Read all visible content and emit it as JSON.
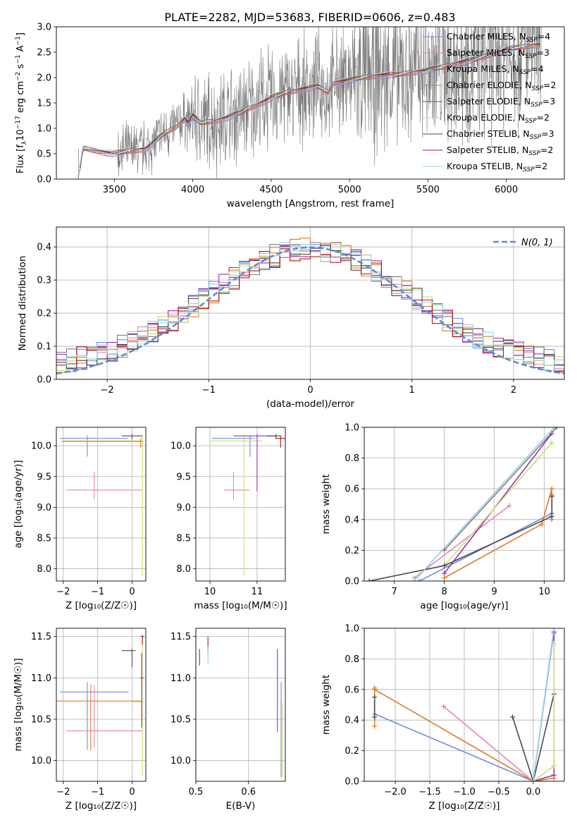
{
  "title": "PLATE=2282, MJD=53683, FIBERID=0606, z=0.483",
  "colors": {
    "chabrier_miles": "#6a8fdc",
    "salpeter_miles": "#e585b5",
    "kroupa_miles": "#7f7f7f",
    "chabrier_elodie": "#e07b27",
    "salpeter_elodie": "#9b2fb5",
    "kroupa_elodie": "#c7e26f",
    "chabrier_stelib": "#4a4a4a",
    "salpeter_stelib": "#b01515",
    "kroupa_stelib": "#8fd1e6",
    "data": "#777777",
    "gauss": "#5b8cd6",
    "grid": "#b0b0b0"
  },
  "chart_data": [
    {
      "type": "line",
      "panel": "spectrum",
      "xlabel": "wavelength [Angstrom, rest frame]",
      "ylabel": "Flux [f$_\\lambda$10$^{-17}$ erg cm$^{-2}$ s$^{-1}$ A$^{-1}$]",
      "ylabel_parts": [
        "Flux [f",
        "λ",
        "10",
        "−17",
        " erg cm",
        "−2",
        " s",
        "−1",
        " A",
        "−1",
        "]"
      ],
      "xlim": [
        3130,
        6370
      ],
      "ylim": [
        0,
        3.0
      ],
      "xticks": [
        3500,
        4000,
        4500,
        5000,
        5500,
        6000
      ],
      "yticks": [
        0.0,
        0.5,
        1.0,
        1.5,
        2.0,
        2.5,
        3.0
      ],
      "legend": [
        {
          "label": "Chabrier MILES, N",
          "sub": "SSP",
          "tail": "=4",
          "color": "#6a8fdc"
        },
        {
          "label": "Salpeter MILES, N",
          "sub": "SSP",
          "tail": "=3",
          "color": "#e585b5"
        },
        {
          "label": "Kroupa MILES, N",
          "sub": "SSP",
          "tail": "=4",
          "color": "#7f7f7f"
        },
        {
          "label": "Chabrier ELODIE, N",
          "sub": "SSP",
          "tail": "=2",
          "color": "#e07b27"
        },
        {
          "label": "Salpeter ELODIE, N",
          "sub": "SSP",
          "tail": "=3",
          "color": "#9b2fb5"
        },
        {
          "label": "Kroupa ELODIE, N",
          "sub": "SSP",
          "tail": "=2",
          "color": "#c7e26f"
        },
        {
          "label": "Chabrier STELIB, N",
          "sub": "SSP",
          "tail": "=3",
          "color": "#4a4a4a"
        },
        {
          "label": "Salpeter STELIB, N",
          "sub": "SSP",
          "tail": "=2",
          "color": "#b01515"
        },
        {
          "label": "Kroupa STELIB, N",
          "sub": "SSP",
          "tail": "=2",
          "color": "#8fd1e6"
        }
      ],
      "model_x": [
        3270,
        3300,
        3400,
        3500,
        3600,
        3700,
        3750,
        3800,
        3850,
        3900,
        3950,
        3970,
        4000,
        4050,
        4100,
        4150,
        4200,
        4300,
        4400,
        4500,
        4600,
        4700,
        4800,
        4860,
        4900,
        5000,
        5100,
        5200,
        5300,
        5400,
        5500,
        5600,
        5700,
        5800,
        5900,
        6000,
        6100,
        6200
      ],
      "model_y": [
        0.0,
        0.6,
        0.55,
        0.5,
        0.55,
        0.6,
        0.72,
        0.85,
        0.95,
        1.05,
        1.2,
        1.1,
        1.25,
        1.1,
        1.12,
        1.15,
        1.2,
        1.3,
        1.45,
        1.6,
        1.7,
        1.78,
        1.82,
        1.7,
        1.9,
        1.95,
        2.0,
        2.05,
        2.05,
        2.1,
        2.15,
        2.2,
        2.3,
        2.35,
        2.45,
        2.55,
        2.6,
        2.65
      ]
    },
    {
      "type": "line",
      "panel": "residual-histogram",
      "xlabel": "(data-model)/error",
      "ylabel": "Normed distribution",
      "xlim": [
        -2.5,
        2.5
      ],
      "ylim": [
        0,
        0.46
      ],
      "xticks": [
        -2,
        -1,
        0,
        1,
        2
      ],
      "yticks": [
        0.0,
        0.1,
        0.2,
        0.3,
        0.4
      ],
      "legend": [
        {
          "label": "N(0, 1)",
          "style": "dashed",
          "color": "#5b8cd6"
        }
      ],
      "bin_width": 0.1,
      "hist_min": -2.5
    },
    {
      "type": "scatter",
      "panel": "age-vs-Z",
      "xlabel": "Z [log10(Z/Z☉)]",
      "ylabel": "age  [log10(age/yr)]",
      "xlim": [
        -2.2,
        0.4
      ],
      "ylim": [
        7.8,
        10.3
      ],
      "xticks": [
        -2,
        -1,
        0
      ],
      "yticks": [
        8.0,
        8.5,
        9.0,
        9.5,
        10.0
      ],
      "points": [
        {
          "x": -1.3,
          "y": 10.12,
          "xerr": [
            0.8,
            1.2
          ],
          "yerr": [
            0.3,
            0.05
          ],
          "color": "#6a8fdc"
        },
        {
          "x": -1.1,
          "y": 9.28,
          "xerr": [
            0.8,
            1.4
          ],
          "yerr": [
            0.15,
            0.3
          ],
          "color": "#e585b5"
        },
        {
          "x": 0.3,
          "y": 10.08,
          "xerr": [
            2.3,
            0.05
          ],
          "yerr": [
            2.2,
            0.1
          ],
          "color": "#c7e26f"
        },
        {
          "x": 0.0,
          "y": 10.16,
          "xerr": [
            0.3,
            0.3
          ],
          "yerr": [
            0.05,
            0.03
          ],
          "color": "#4a4a4a"
        },
        {
          "x": 0.25,
          "y": 10.07,
          "xerr": [
            2.3,
            0.05
          ],
          "yerr": [
            0.1,
            0.05
          ],
          "color": "#e07b27"
        }
      ]
    },
    {
      "type": "scatter",
      "panel": "age-vs-mass",
      "xlabel": "mass [log10(M/M☉)]",
      "ylabel": "",
      "xlim": [
        9.7,
        11.6
      ],
      "ylim": [
        7.8,
        10.3
      ],
      "xticks": [
        10,
        11
      ],
      "yticks": [
        8.0,
        8.5,
        9.0,
        9.5,
        10.0
      ],
      "points": [
        {
          "x": 10.85,
          "y": 10.12,
          "xerr": [
            0.8,
            0.1
          ],
          "yerr": [
            0.3,
            0.05
          ],
          "color": "#6a8fdc"
        },
        {
          "x": 10.5,
          "y": 9.28,
          "xerr": [
            0.2,
            0.35
          ],
          "yerr": [
            0.15,
            0.3
          ],
          "color": "#e585b5"
        },
        {
          "x": 10.72,
          "y": 10.08,
          "xerr": [
            0.7,
            0.4
          ],
          "yerr": [
            2.2,
            0.1
          ],
          "color": "#c7e26f"
        },
        {
          "x": 11.0,
          "y": 10.16,
          "xerr": [
            0.5,
            0.4
          ],
          "yerr": [
            0.9,
            0.03
          ],
          "color": "#9b2fb5"
        },
        {
          "x": 11.4,
          "y": 10.16,
          "xerr": [
            0.2,
            0.1
          ],
          "yerr": [
            0.05,
            0.03
          ],
          "color": "#4a4a4a"
        },
        {
          "x": 11.5,
          "y": 10.12,
          "xerr": [
            0.1,
            0.1
          ],
          "yerr": [
            0.15,
            0.05
          ],
          "color": "#b01515"
        }
      ]
    },
    {
      "type": "line",
      "panel": "massweight-vs-age",
      "xlabel": "age  [log10(age/yr)]",
      "ylabel": "mass weight",
      "xlim": [
        6.4,
        10.4
      ],
      "ylim": [
        0.0,
        1.0
      ],
      "xticks": [
        7,
        8,
        9,
        10
      ],
      "yticks": [
        0.0,
        0.2,
        0.4,
        0.6,
        0.8,
        1.0
      ],
      "series": [
        {
          "color": "#6a8fdc",
          "x": [
            7.5,
            10.15,
            10.15
          ],
          "y": [
            0.0,
            0.44,
            0.56
          ]
        },
        {
          "color": "#e585b5",
          "x": [
            7.4,
            9.3
          ],
          "y": [
            0.02,
            0.49
          ]
        },
        {
          "color": "#e07b27",
          "x": [
            8.0,
            9.95,
            10.15,
            10.15
          ],
          "y": [
            0.02,
            0.37,
            0.6,
            0.4
          ]
        },
        {
          "color": "#9b2fb5",
          "x": [
            8.0,
            10.15
          ],
          "y": [
            0.05,
            0.96
          ]
        },
        {
          "color": "#c7e26f",
          "x": [
            8.0,
            10.15
          ],
          "y": [
            0.1,
            0.9
          ]
        },
        {
          "color": "#4a4a4a",
          "x": [
            6.5,
            8.0,
            10.15,
            10.15
          ],
          "y": [
            0.0,
            0.1,
            0.42,
            0.55
          ]
        },
        {
          "color": "#8fd1e6",
          "x": [
            7.4,
            10.2
          ],
          "y": [
            0.0,
            1.0
          ]
        },
        {
          "color": "#7f7f7f",
          "x": [
            8.0,
            10.25
          ],
          "y": [
            0.2,
            1.0
          ]
        }
      ]
    },
    {
      "type": "scatter",
      "panel": "mass-vs-Z",
      "xlabel": "Z [log10(Z/Z☉)]",
      "ylabel": "mass [log10(M/M☉)]",
      "xlim": [
        -2.2,
        0.4
      ],
      "ylim": [
        9.75,
        11.6
      ],
      "xticks": [
        -2,
        -1,
        0
      ],
      "yticks": [
        10.0,
        10.5,
        11.0,
        11.5
      ],
      "points": [
        {
          "x": -1.3,
          "y": 10.83,
          "xerr": [
            0.8,
            1.2
          ],
          "yerr": [
            0.7,
            0.12
          ],
          "color": "#6a8fdc"
        },
        {
          "x": -1.1,
          "y": 10.36,
          "xerr": [
            0.8,
            1.4
          ],
          "yerr": [
            0.2,
            0.55
          ],
          "color": "#e585b5"
        },
        {
          "x": -1.2,
          "y": 10.72,
          "xerr": [
            1.0,
            1.5
          ],
          "yerr": [
            0.6,
            0.2
          ],
          "color": "#e07b27"
        },
        {
          "x": 0.3,
          "y": 10.71,
          "xerr": [
            0.3,
            0.05
          ],
          "yerr": [
            0.9,
            0.7
          ],
          "color": "#c7e26f"
        },
        {
          "x": 0.0,
          "y": 11.33,
          "xerr": [
            0.3,
            0.1
          ],
          "yerr": [
            0.2,
            0.02
          ],
          "color": "#4a4a4a"
        },
        {
          "x": 0.3,
          "y": 11.5,
          "xerr": [
            0.05,
            0.05
          ],
          "yerr": [
            0.1,
            0.02
          ],
          "color": "#b01515"
        },
        {
          "x": 0.28,
          "y": 11.0,
          "xerr": [
            0.05,
            0.05
          ],
          "yerr": [
            0.6,
            0.3
          ],
          "color": "#9b2fb5"
        }
      ]
    },
    {
      "type": "scatter",
      "panel": "mass-vs-EBV",
      "xlabel": "E(B-V)",
      "ylabel": "",
      "xlim": [
        0.5,
        0.67
      ],
      "ylim": [
        9.75,
        11.6
      ],
      "xticks": [
        0.5,
        0.6
      ],
      "yticks": [
        10.0,
        10.5,
        11.0,
        11.5
      ],
      "points": [
        {
          "x": 0.507,
          "y": 11.3,
          "yerr": [
            0.15,
            0.05
          ],
          "color": "#4a4a4a"
        },
        {
          "x": 0.5,
          "y": 9.85,
          "yerr": [
            0.1,
            0.3
          ],
          "color": "#e585b5"
        },
        {
          "x": 0.523,
          "y": 11.4,
          "yerr": [
            0.1,
            0.1
          ],
          "color": "#b01515"
        },
        {
          "x": 0.523,
          "y": 11.28,
          "yerr": [
            0.1,
            0.1
          ],
          "color": "#8fd1e6"
        },
        {
          "x": 0.655,
          "y": 10.85,
          "yerr": [
            0.5,
            0.5
          ],
          "color": "#9b2fb5"
        },
        {
          "x": 0.662,
          "y": 10.5,
          "yerr": [
            0.7,
            0.45
          ],
          "color": "#6a8fdc"
        },
        {
          "x": 0.664,
          "y": 10.3,
          "yerr": [
            0.5,
            0.4
          ],
          "color": "#c7e26f"
        }
      ]
    },
    {
      "type": "line",
      "panel": "massweight-vs-Z",
      "xlabel": "Z [log10(Z/Z☉)]",
      "ylabel": "mass weight",
      "xlim": [
        -2.45,
        0.45
      ],
      "ylim": [
        0.0,
        1.0
      ],
      "xticks": [
        -2.0,
        -1.5,
        -1.0,
        -0.5,
        0.0
      ],
      "yticks": [
        0.0,
        0.2,
        0.4,
        0.6,
        0.8,
        1.0
      ],
      "series": [
        {
          "color": "#6a8fdc",
          "x": [
            -2.3,
            0.0,
            0.3
          ],
          "y": [
            0.44,
            0.0,
            0.98
          ]
        },
        {
          "color": "#e07b27",
          "x": [
            -2.3,
            -2.3,
            -2.3,
            0.0,
            0.3
          ],
          "y": [
            0.36,
            0.61,
            0.6,
            0.0,
            0.02
          ]
        },
        {
          "color": "#e585b5",
          "x": [
            -1.3,
            0.0
          ],
          "y": [
            0.49,
            0.0
          ]
        },
        {
          "color": "#4a4a4a",
          "x": [
            -2.3,
            -2.3
          ],
          "y": [
            0.42,
            0.55
          ]
        },
        {
          "color": "#4a4a4a",
          "x": [
            -0.3,
            0.0,
            0.3
          ],
          "y": [
            0.42,
            0.0,
            0.57
          ]
        },
        {
          "color": "#9b2fb5",
          "x": [
            0.0,
            0.3,
            0.3
          ],
          "y": [
            0.0,
            0.04,
            0.97
          ]
        },
        {
          "color": "#c7e26f",
          "x": [
            0.0,
            0.3,
            0.3
          ],
          "y": [
            0.0,
            0.1,
            0.9
          ]
        },
        {
          "color": "#8fd1e6",
          "x": [
            0.0,
            0.3
          ],
          "y": [
            0.0,
            1.0
          ]
        }
      ]
    }
  ]
}
